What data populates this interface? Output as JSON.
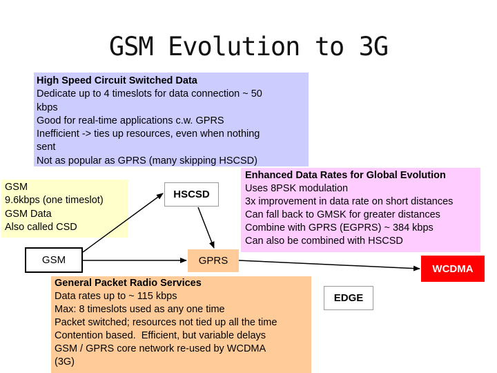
{
  "title": "GSM Evolution to 3G",
  "hscsd_info": {
    "heading": "High Speed Circuit Switched Data",
    "lines": [
      "Dedicate up to 4 timeslots for data connection ~ 50",
      "kbps",
      "Good for real-time applications c.w. GPRS",
      "Inefficient -> ties up resources, even when nothing",
      "sent",
      "Not as popular as GPRS (many skipping HSCSD)"
    ]
  },
  "gsm_info": {
    "lines": [
      "GSM",
      "9.6kbps (one timeslot)",
      "GSM Data",
      "Also called CSD"
    ]
  },
  "edge_info": {
    "heading": "Enhanced Data Rates for Global Evolution",
    "lines": [
      "Uses 8PSK modulation",
      "3x improvement in data rate on short distances",
      "Can fall back to GMSK for greater distances",
      "Combine with GPRS (EGPRS) ~ 384 kbps",
      "Can also be combined with HSCSD"
    ]
  },
  "gprs_info": {
    "heading": "General Packet Radio Services",
    "lines": [
      "Data rates up to ~ 115 kbps",
      "Max: 8 timeslots used as any one time",
      "Packet switched; resources not tied up all the time",
      "Contention based.  Efficient, but variable delays",
      "GSM / GPRS core network re-used by WCDMA",
      "(3G)"
    ]
  },
  "nodes": {
    "gsm": "GSM",
    "hscsd": "HSCSD",
    "gprs": "GPRS",
    "wcdma": "WCDMA",
    "edge": "EDGE"
  },
  "colors": {
    "hscsd_box": "#ccccff",
    "gsm_box": "#ffffcc",
    "edge_box": "#ffccff",
    "gprs_box": "#ffcc99",
    "wcdma_node": "#ff0000"
  }
}
